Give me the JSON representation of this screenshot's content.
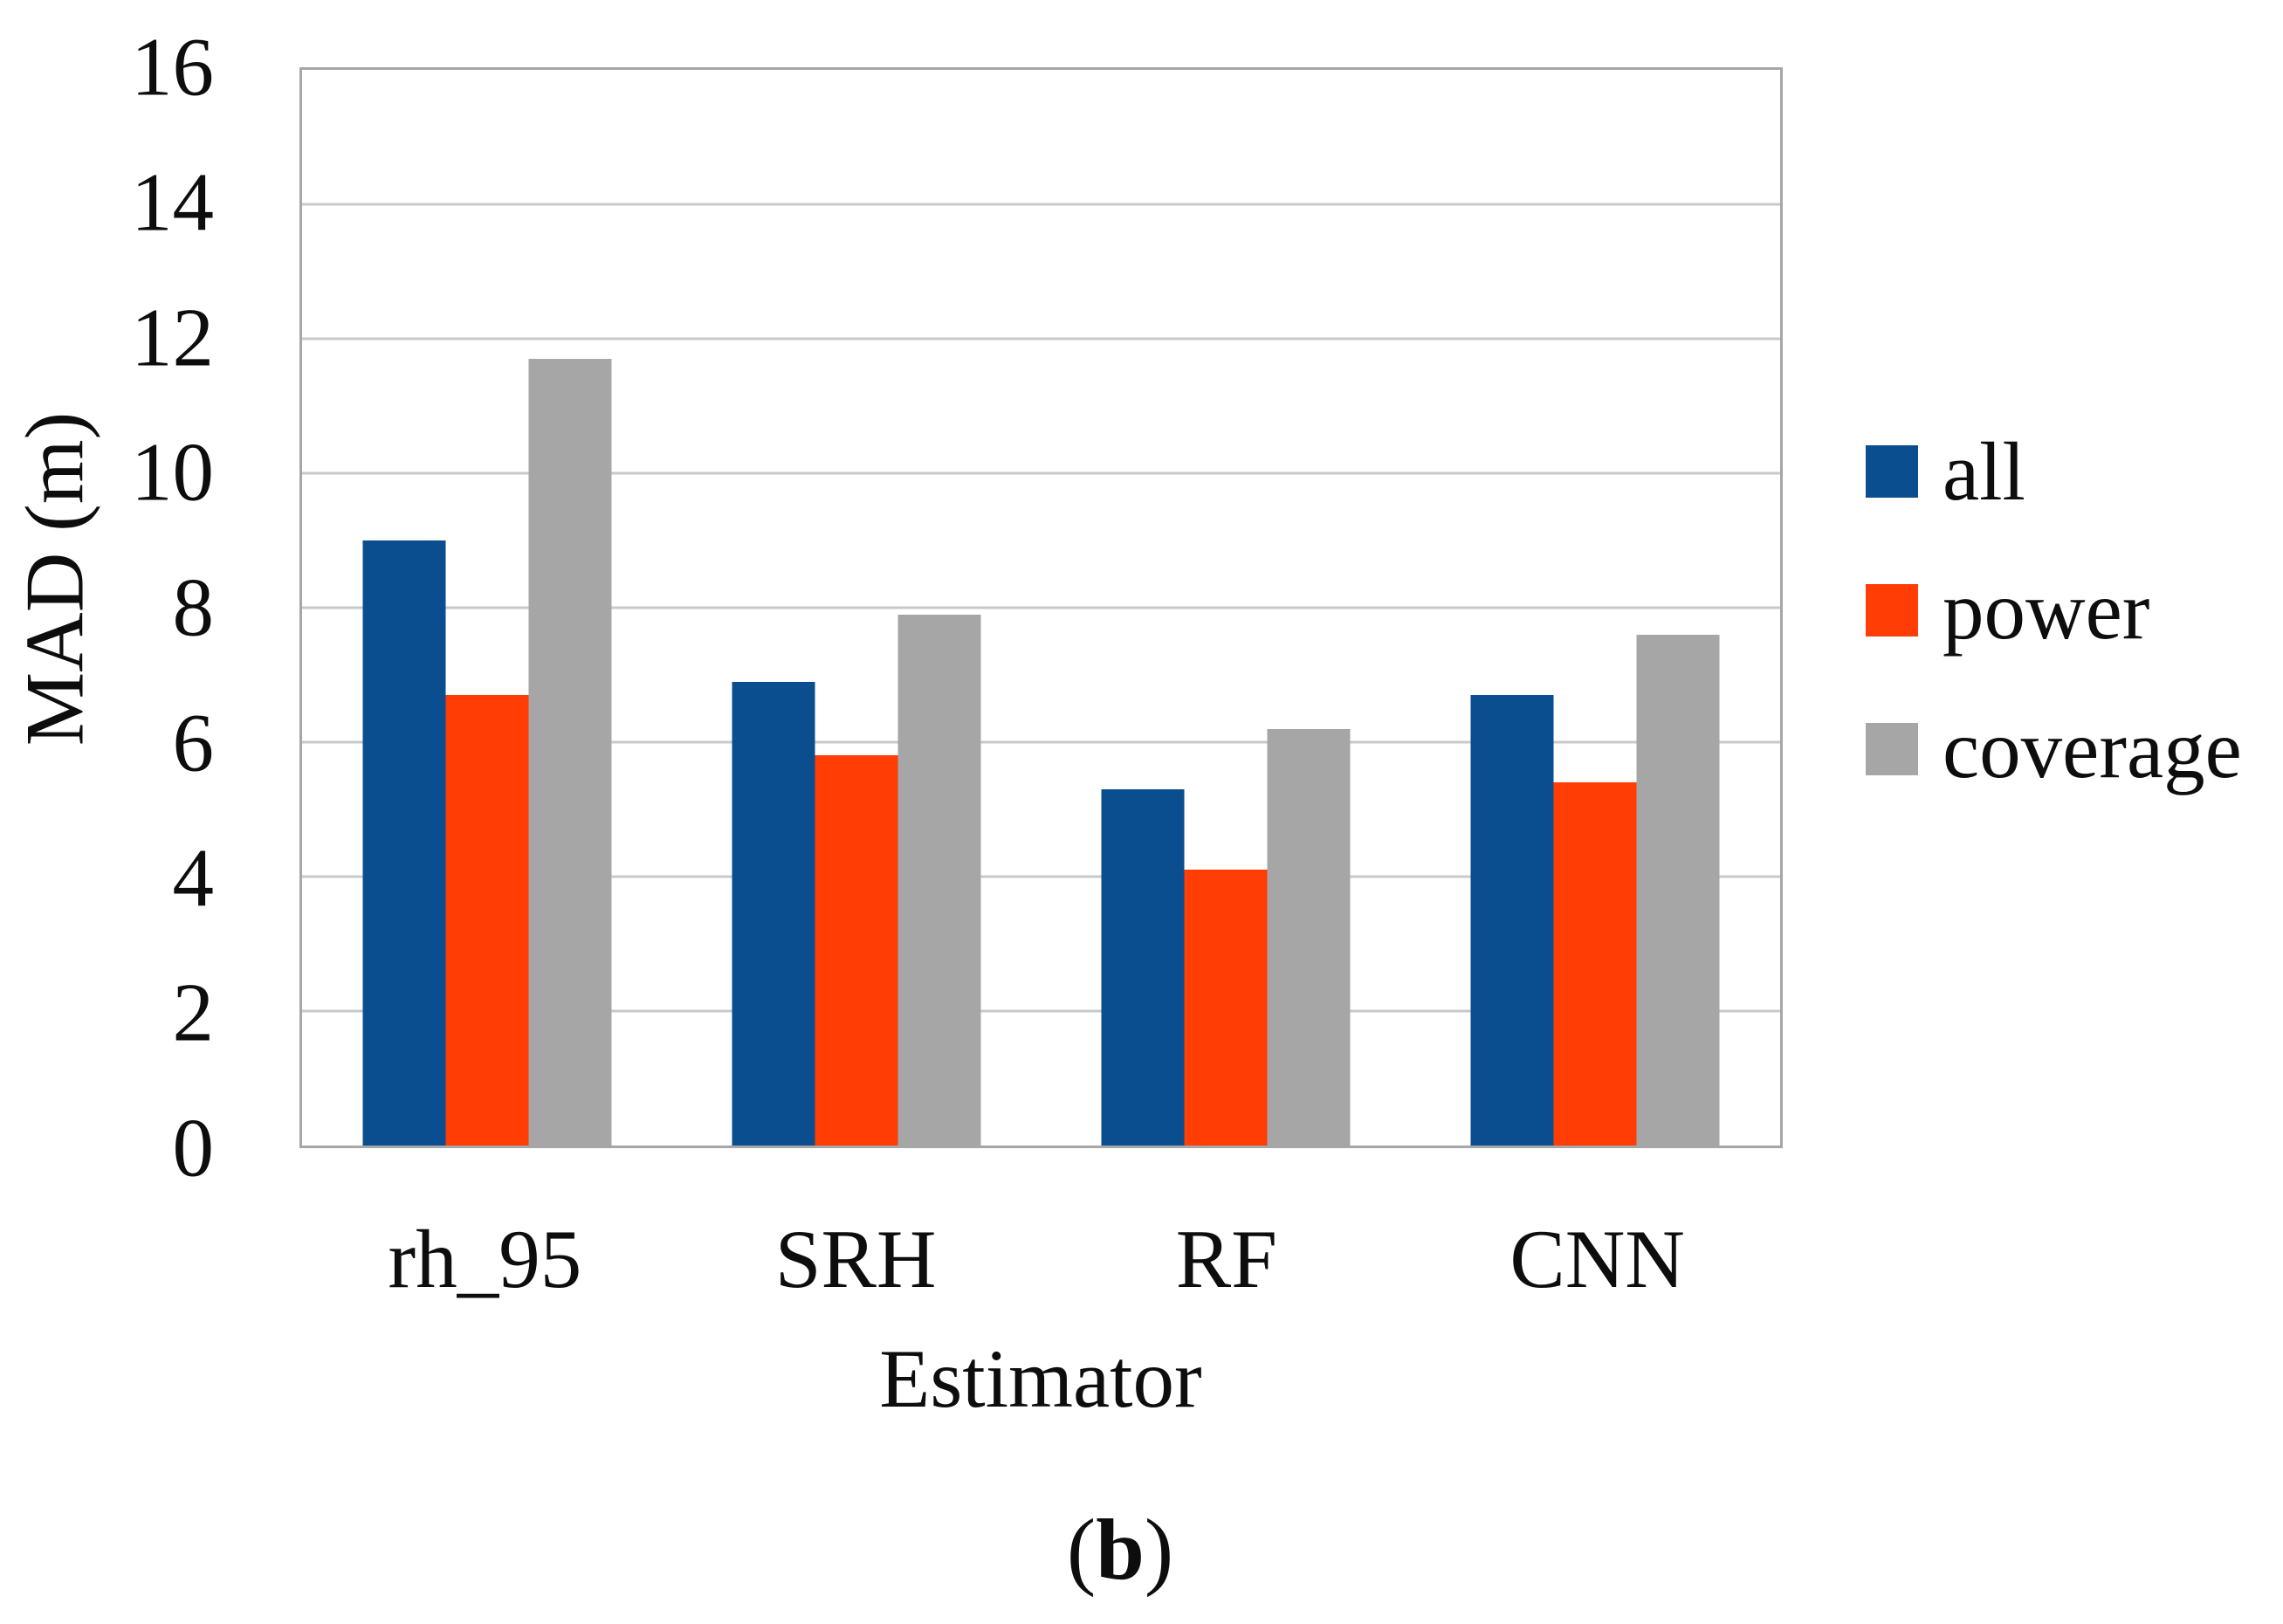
{
  "figure": {
    "caption": {
      "open": "(",
      "letter": "b",
      "close": ")"
    }
  },
  "chart_data": {
    "type": "bar",
    "title": "",
    "categories": [
      "rh_95",
      "SRH",
      "RF",
      "CNN"
    ],
    "series": [
      {
        "name": "all",
        "color": "#0a4e90",
        "values": [
          9.0,
          6.9,
          5.3,
          6.7
        ]
      },
      {
        "name": "power",
        "color": "#ff3d05",
        "values": [
          6.7,
          5.8,
          4.1,
          5.4
        ]
      },
      {
        "name": "coverage",
        "color": "#a6a6a6",
        "values": [
          11.7,
          7.9,
          6.2,
          7.6
        ]
      }
    ],
    "xlabel": "Estimator",
    "ylabel": "MAD (m)",
    "ylim": [
      0,
      16
    ],
    "yticks": [
      0,
      2,
      4,
      6,
      8,
      10,
      12,
      14,
      16
    ],
    "grid": "horizontal",
    "legend_position": "right"
  }
}
